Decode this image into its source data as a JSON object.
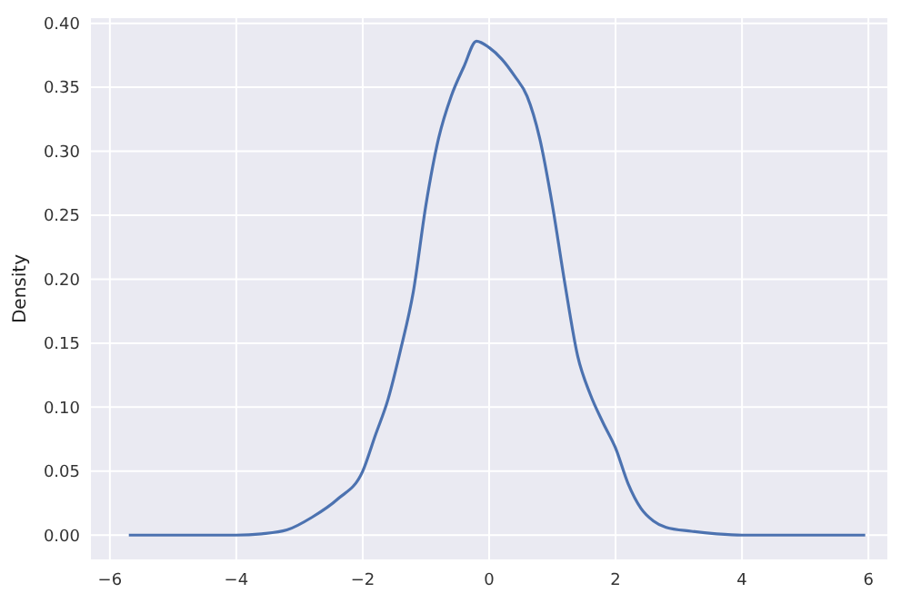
{
  "chart_data": {
    "type": "line",
    "ylabel": "Density",
    "xlim": [
      -6.3,
      6.3
    ],
    "ylim": [
      -0.019,
      0.404
    ],
    "xticks": [
      {
        "value": -6,
        "label": "−6"
      },
      {
        "value": -4,
        "label": "−4"
      },
      {
        "value": -2,
        "label": "−2"
      },
      0,
      2,
      4,
      6
    ],
    "yticks": [
      {
        "value": 0,
        "label": "0.00"
      },
      {
        "value": 0.05,
        "label": "0.05"
      },
      {
        "value": 0.1,
        "label": "0.10"
      },
      {
        "value": 0.15,
        "label": "0.15"
      },
      {
        "value": 0.2,
        "label": "0.20"
      },
      {
        "value": 0.25,
        "label": "0.25"
      },
      {
        "value": 0.3,
        "label": "0.30"
      },
      {
        "value": 0.35,
        "label": "0.35"
      },
      {
        "value": 0.4,
        "label": "0.40"
      }
    ],
    "grid": true,
    "series": [
      {
        "color": "#4c72b0",
        "x": [
          -5.7,
          -4.5,
          -4,
          -3.6,
          -3.2,
          -2.8,
          -2.4,
          -2,
          -1.8,
          -1.6,
          -1.4,
          -1.2,
          -1,
          -0.8,
          -0.6,
          -0.4,
          -0.2,
          0,
          0.2,
          0.4,
          0.6,
          0.8,
          1,
          1.2,
          1.4,
          1.6,
          1.8,
          2,
          2.2,
          2.4,
          2.6,
          2.8,
          3.2,
          3.6,
          4,
          5,
          5.95
        ],
        "values": [
          0,
          0,
          0,
          0.001,
          0.004,
          0.014,
          0.028,
          0.05,
          0.078,
          0.106,
          0.145,
          0.19,
          0.258,
          0.31,
          0.343,
          0.366,
          0.386,
          0.381,
          0.372,
          0.359,
          0.343,
          0.31,
          0.258,
          0.196,
          0.14,
          0.11,
          0.088,
          0.068,
          0.04,
          0.021,
          0.011,
          0.006,
          0.003,
          0.001,
          0,
          0,
          0
        ]
      }
    ]
  }
}
